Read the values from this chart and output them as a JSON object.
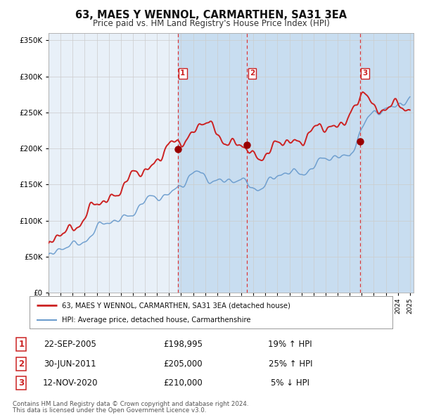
{
  "title": "63, MAES Y WENNOL, CARMARTHEN, SA31 3EA",
  "subtitle": "Price paid vs. HM Land Registry's House Price Index (HPI)",
  "legend_line1": "63, MAES Y WENNOL, CARMARTHEN, SA31 3EA (detached house)",
  "legend_line2": "HPI: Average price, detached house, Carmarthenshire",
  "footer_line1": "Contains HM Land Registry data © Crown copyright and database right 2024.",
  "footer_line2": "This data is licensed under the Open Government Licence v3.0.",
  "sales": [
    {
      "label": "1",
      "date": "22-SEP-2005",
      "price": 198995,
      "pct": "19%",
      "dir": "↑"
    },
    {
      "label": "2",
      "date": "30-JUN-2011",
      "price": 205000,
      "pct": "25%",
      "dir": "↑"
    },
    {
      "label": "3",
      "date": "12-NOV-2020",
      "price": 210000,
      "pct": "5%",
      "dir": "↓"
    }
  ],
  "sale_years": [
    2005.73,
    2011.49,
    2020.87
  ],
  "sale_prices": [
    198995,
    205000,
    210000
  ],
  "ylim": [
    0,
    360000
  ],
  "yticks": [
    0,
    50000,
    100000,
    150000,
    200000,
    250000,
    300000,
    350000
  ],
  "xlim_start": 1995,
  "xlim_end": 2025.3,
  "red_line": "#cc2222",
  "blue_line": "#6699cc",
  "sale_dot": "#990000",
  "grid_color": "#cccccc",
  "shade_color": "#c8ddf0",
  "plot_bg": "#e8f0f8"
}
